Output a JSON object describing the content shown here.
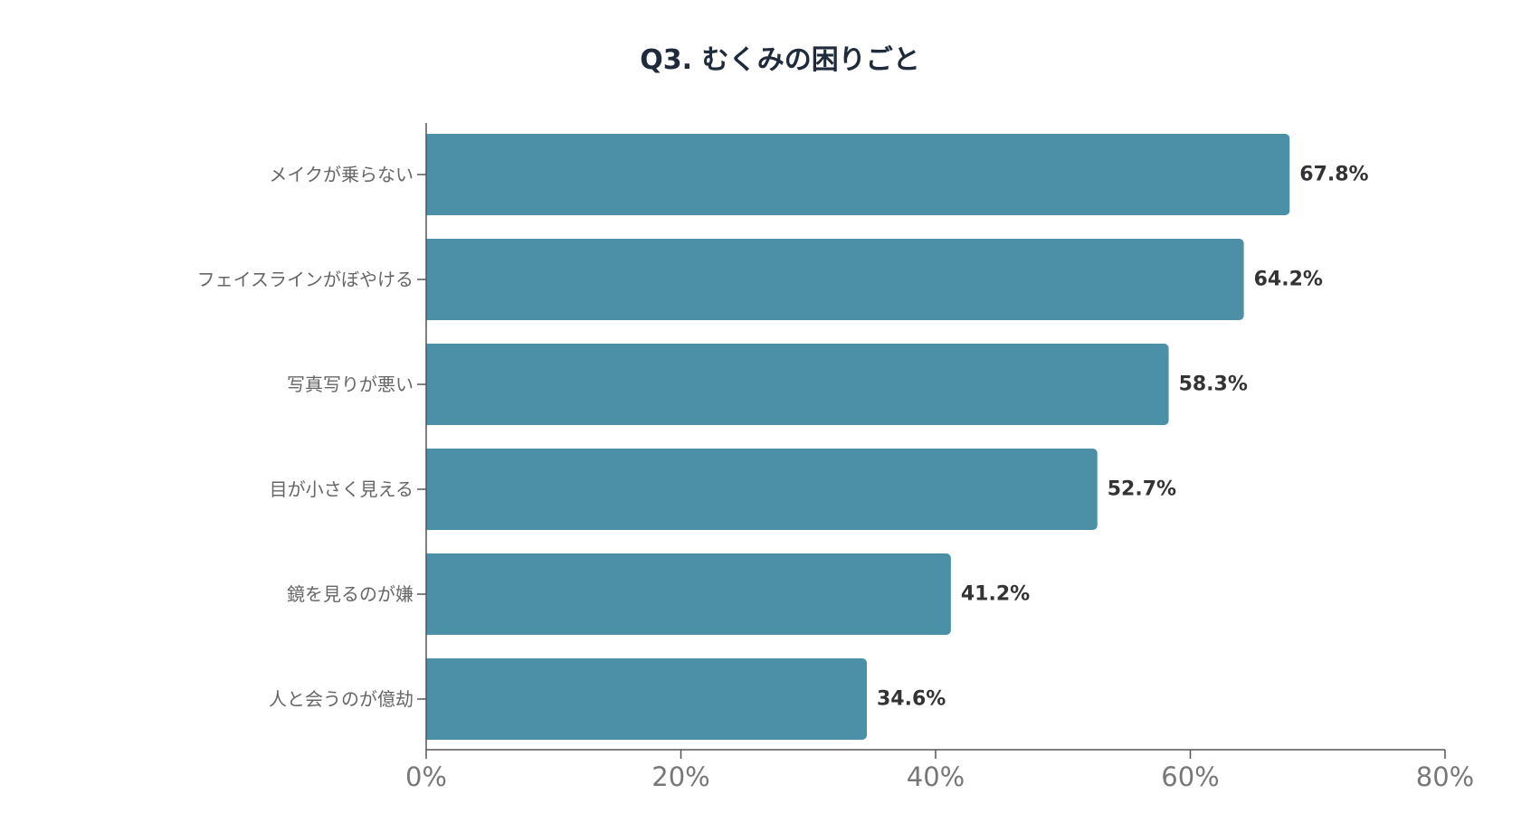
{
  "chart_data": {
    "type": "bar",
    "orientation": "horizontal",
    "title": "Q3. むくみの困りごと",
    "categories": [
      "メイクが乗らない",
      "フェイスラインがぼやける",
      "写真写りが悪い",
      "目が小さく見える",
      "鏡を見るのが嫌",
      "人と会うのが億劫"
    ],
    "values": [
      67.8,
      64.2,
      58.3,
      52.7,
      41.2,
      34.6
    ],
    "data_labels": [
      "67.8%",
      "64.2%",
      "58.3%",
      "52.7%",
      "41.2%",
      "34.6%"
    ],
    "x_ticks": [
      0,
      20,
      40,
      60,
      80
    ],
    "x_tick_labels": [
      "0%",
      "20%",
      "40%",
      "60%",
      "80%"
    ],
    "xlim": [
      0,
      80
    ],
    "bar_color": "#4b90a6",
    "grid": false,
    "legend": "none"
  }
}
